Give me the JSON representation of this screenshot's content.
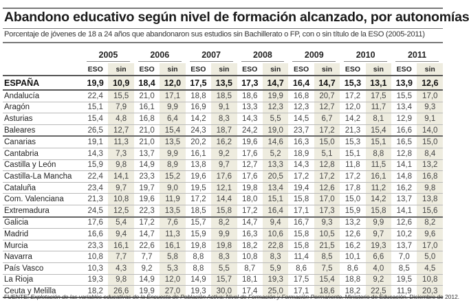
{
  "title": "Abandono educativo según nivel de formación alcanzado, por autonomías",
  "subtitle": "Porcentaje de jóvenes de 18 a 24 años que abandonaron sus estudios sin Bachillerato o FP, con o sin título de la ESO (2005-2011)",
  "colors": {
    "sin_shade": "#eeecdf",
    "text": "#222222"
  },
  "table": {
    "years": [
      "2005",
      "2006",
      "2007",
      "2008",
      "2009",
      "2010",
      "2011"
    ],
    "sub_headers": [
      "ESO",
      "sin"
    ],
    "national": {
      "name": "ESPAÑA",
      "values": [
        "19,9",
        "10,9",
        "18,4",
        "12,0",
        "17,5",
        "13,5",
        "17,3",
        "14,7",
        "16,4",
        "14,7",
        "15,3",
        "13,1",
        "13,9",
        "12,6"
      ]
    },
    "rows": [
      {
        "name": "Andalucía",
        "values": [
          "22,4",
          "15,5",
          "21,0",
          "17,1",
          "18,8",
          "18,5",
          "18,6",
          "19,9",
          "16,8",
          "20,7",
          "17,2",
          "17,5",
          "15,5",
          "17,0"
        ]
      },
      {
        "name": "Aragón",
        "values": [
          "15,1",
          "7,9",
          "16,1",
          "9,9",
          "16,9",
          "9,1",
          "13,3",
          "12,3",
          "12,3",
          "12,7",
          "12,0",
          "11,7",
          "13,4",
          "9,3"
        ]
      },
      {
        "name": "Asturias",
        "values": [
          "15,4",
          "4,8",
          "16,8",
          "6,4",
          "14,2",
          "8,3",
          "14,3",
          "5,5",
          "14,5",
          "6,7",
          "14,2",
          "8,1",
          "12,9",
          "9,1"
        ]
      },
      {
        "name": "Baleares",
        "values": [
          "26,5",
          "12,7",
          "21,0",
          "15,4",
          "24,3",
          "18,7",
          "24,2",
          "19,0",
          "23,7",
          "17,2",
          "21,3",
          "15,4",
          "16,6",
          "14,0"
        ]
      },
      {
        "name": "Canarias",
        "values": [
          "19,1",
          "11,3",
          "21,0",
          "13,5",
          "20,2",
          "16,2",
          "19,6",
          "14,6",
          "16,3",
          "15,0",
          "15,3",
          "15,1",
          "16,5",
          "15,0"
        ]
      },
      {
        "name": "Cantabria",
        "values": [
          "14,3",
          "7,3",
          "13,7",
          "9,9",
          "16,1",
          "9,2",
          "17,6",
          "5,2",
          "18,9",
          "5,1",
          "15,1",
          "8,8",
          "12,8",
          "8,4"
        ]
      },
      {
        "name": "Castilla y León",
        "values": [
          "15,9",
          "9,8",
          "14,9",
          "8,9",
          "13,8",
          "9,7",
          "12,7",
          "13,3",
          "14,3",
          "12,8",
          "11,8",
          "11,5",
          "14,1",
          "13,2"
        ]
      },
      {
        "name": "Castilla-La Mancha",
        "values": [
          "22,4",
          "14,1",
          "23,3",
          "15,2",
          "19,6",
          "17,6",
          "17,6",
          "20,5",
          "17,2",
          "17,2",
          "17,2",
          "16,1",
          "14,8",
          "16,8"
        ]
      },
      {
        "name": "Cataluña",
        "values": [
          "23,4",
          "9,7",
          "19,7",
          "9,0",
          "19,5",
          "12,1",
          "19,8",
          "13,4",
          "19,4",
          "12,6",
          "17,8",
          "11,2",
          "16,2",
          "9,8"
        ]
      },
      {
        "name": "Com. Valenciana",
        "values": [
          "21,3",
          "10,8",
          "19,6",
          "11,9",
          "17,2",
          "14,4",
          "18,0",
          "15,1",
          "15,8",
          "17,0",
          "15,0",
          "14,2",
          "13,7",
          "13,8"
        ]
      },
      {
        "name": "Extremadura",
        "values": [
          "24,5",
          "12,5",
          "22,3",
          "13,5",
          "18,5",
          "15,8",
          "17,2",
          "16,4",
          "17,1",
          "17,3",
          "15,9",
          "15,8",
          "14,1",
          "15,6"
        ]
      },
      {
        "name": "Galicia",
        "values": [
          "17,6",
          "5,4",
          "17,2",
          "7,6",
          "15,7",
          "8,2",
          "14,7",
          "9,4",
          "16,7",
          "9,3",
          "13,2",
          "9,9",
          "12,6",
          "8,2"
        ]
      },
      {
        "name": "Madrid",
        "values": [
          "16,6",
          "9,4",
          "14,7",
          "11,3",
          "15,9",
          "9,9",
          "16,3",
          "10,6",
          "15,8",
          "10,5",
          "12,6",
          "9,7",
          "10,2",
          "9,6"
        ]
      },
      {
        "name": "Murcia",
        "values": [
          "23,3",
          "16,1",
          "22,6",
          "16,1",
          "19,8",
          "19,8",
          "18,2",
          "22,8",
          "15,8",
          "21,5",
          "16,2",
          "19,3",
          "13,7",
          "17,0"
        ]
      },
      {
        "name": "Navarra",
        "values": [
          "10,8",
          "7,7",
          "7,7",
          "5,8",
          "8,8",
          "8,3",
          "10,8",
          "8,3",
          "11,4",
          "8,5",
          "10,1",
          "6,6",
          "7,0",
          "5,0"
        ]
      },
      {
        "name": "País Vasco",
        "values": [
          "10,3",
          "4,3",
          "9,2",
          "5,3",
          "8,8",
          "5,5",
          "8,7",
          "5,9",
          "8,6",
          "7,5",
          "8,6",
          "4,0",
          "8,5",
          "4,5"
        ]
      },
      {
        "name": "La Rioja",
        "values": [
          "19,3",
          "9,8",
          "14,9",
          "12,0",
          "14,9",
          "15,7",
          "18,1",
          "19,3",
          "17,5",
          "15,4",
          "18,8",
          "9,2",
          "19,5",
          "10,8"
        ]
      },
      {
        "name": "Ceuta y Melilla",
        "values": [
          "18,2",
          "26,6",
          "19,9",
          "27,0",
          "19,3",
          "30,0",
          "17,4",
          "25,0",
          "17,1",
          "18,6",
          "18,2",
          "22,5",
          "11,9",
          "20,3"
        ]
      }
    ]
  },
  "footer": {
    "label": "FUENTE:",
    "source": "Explotación de las variables educativas de la Encuesta de Población Activa: Nivel de Formación y Formación Permanente.",
    "publisher": "Ministerio de Educación. Diciembre de 2012."
  }
}
